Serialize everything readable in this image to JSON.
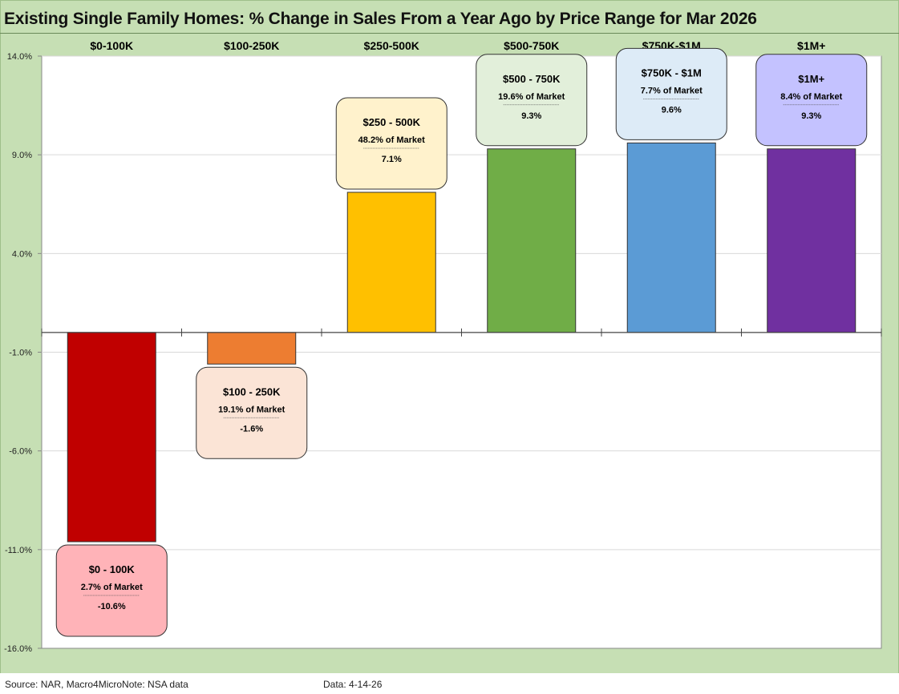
{
  "chart_data": {
    "type": "bar",
    "title": "Existing Single Family Homes: % Change in Sales From a Year Ago by Price Range for Mar 2026",
    "categories": [
      "$0-100K",
      "$100-250K",
      "$250-500K",
      "$500-750K",
      "$750K-$1M",
      "$1M+"
    ],
    "values": [
      -10.6,
      -1.6,
      7.1,
      9.3,
      9.6,
      9.3
    ],
    "colors": [
      "#c00000",
      "#ed7d31",
      "#ffc000",
      "#70ad47",
      "#5b9bd5",
      "#7030a0"
    ],
    "callouts": [
      {
        "title": "$0 - 100K",
        "share": "2.7% of Market",
        "value": "-10.6%",
        "fill": "#ffb3b8"
      },
      {
        "title": "$100 - 250K",
        "share": "19.1% of Market",
        "value": "-1.6%",
        "fill": "#fbe4d6"
      },
      {
        "title": "$250 - 500K",
        "share": "48.2% of Market",
        "value": "7.1%",
        "fill": "#fff2cc"
      },
      {
        "title": "$500 - 750K",
        "share": "19.6% of Market",
        "value": "9.3%",
        "fill": "#e2efda"
      },
      {
        "title": "$750K - $1M",
        "share": "7.7% of Market",
        "value": "9.6%",
        "fill": "#ddebf7"
      },
      {
        "title": "$1M+",
        "share": "8.4% of Market",
        "value": "9.3%",
        "fill": "#c4c2ff"
      }
    ],
    "ylim": [
      -16,
      14
    ],
    "yticks": [
      14,
      9,
      4,
      -1,
      -6,
      -11,
      -16
    ],
    "ytick_labels": [
      "14.0%",
      "9.0%",
      "4.0%",
      "-1.0%",
      "-6.0%",
      "-11.0%",
      "-16.0%"
    ],
    "xlabel": "",
    "ylabel": "",
    "grid": true
  },
  "footer": {
    "source": "Source: NAR, Macro4MicroNote: NSA data",
    "data_date": "Data: 4-14-26"
  }
}
